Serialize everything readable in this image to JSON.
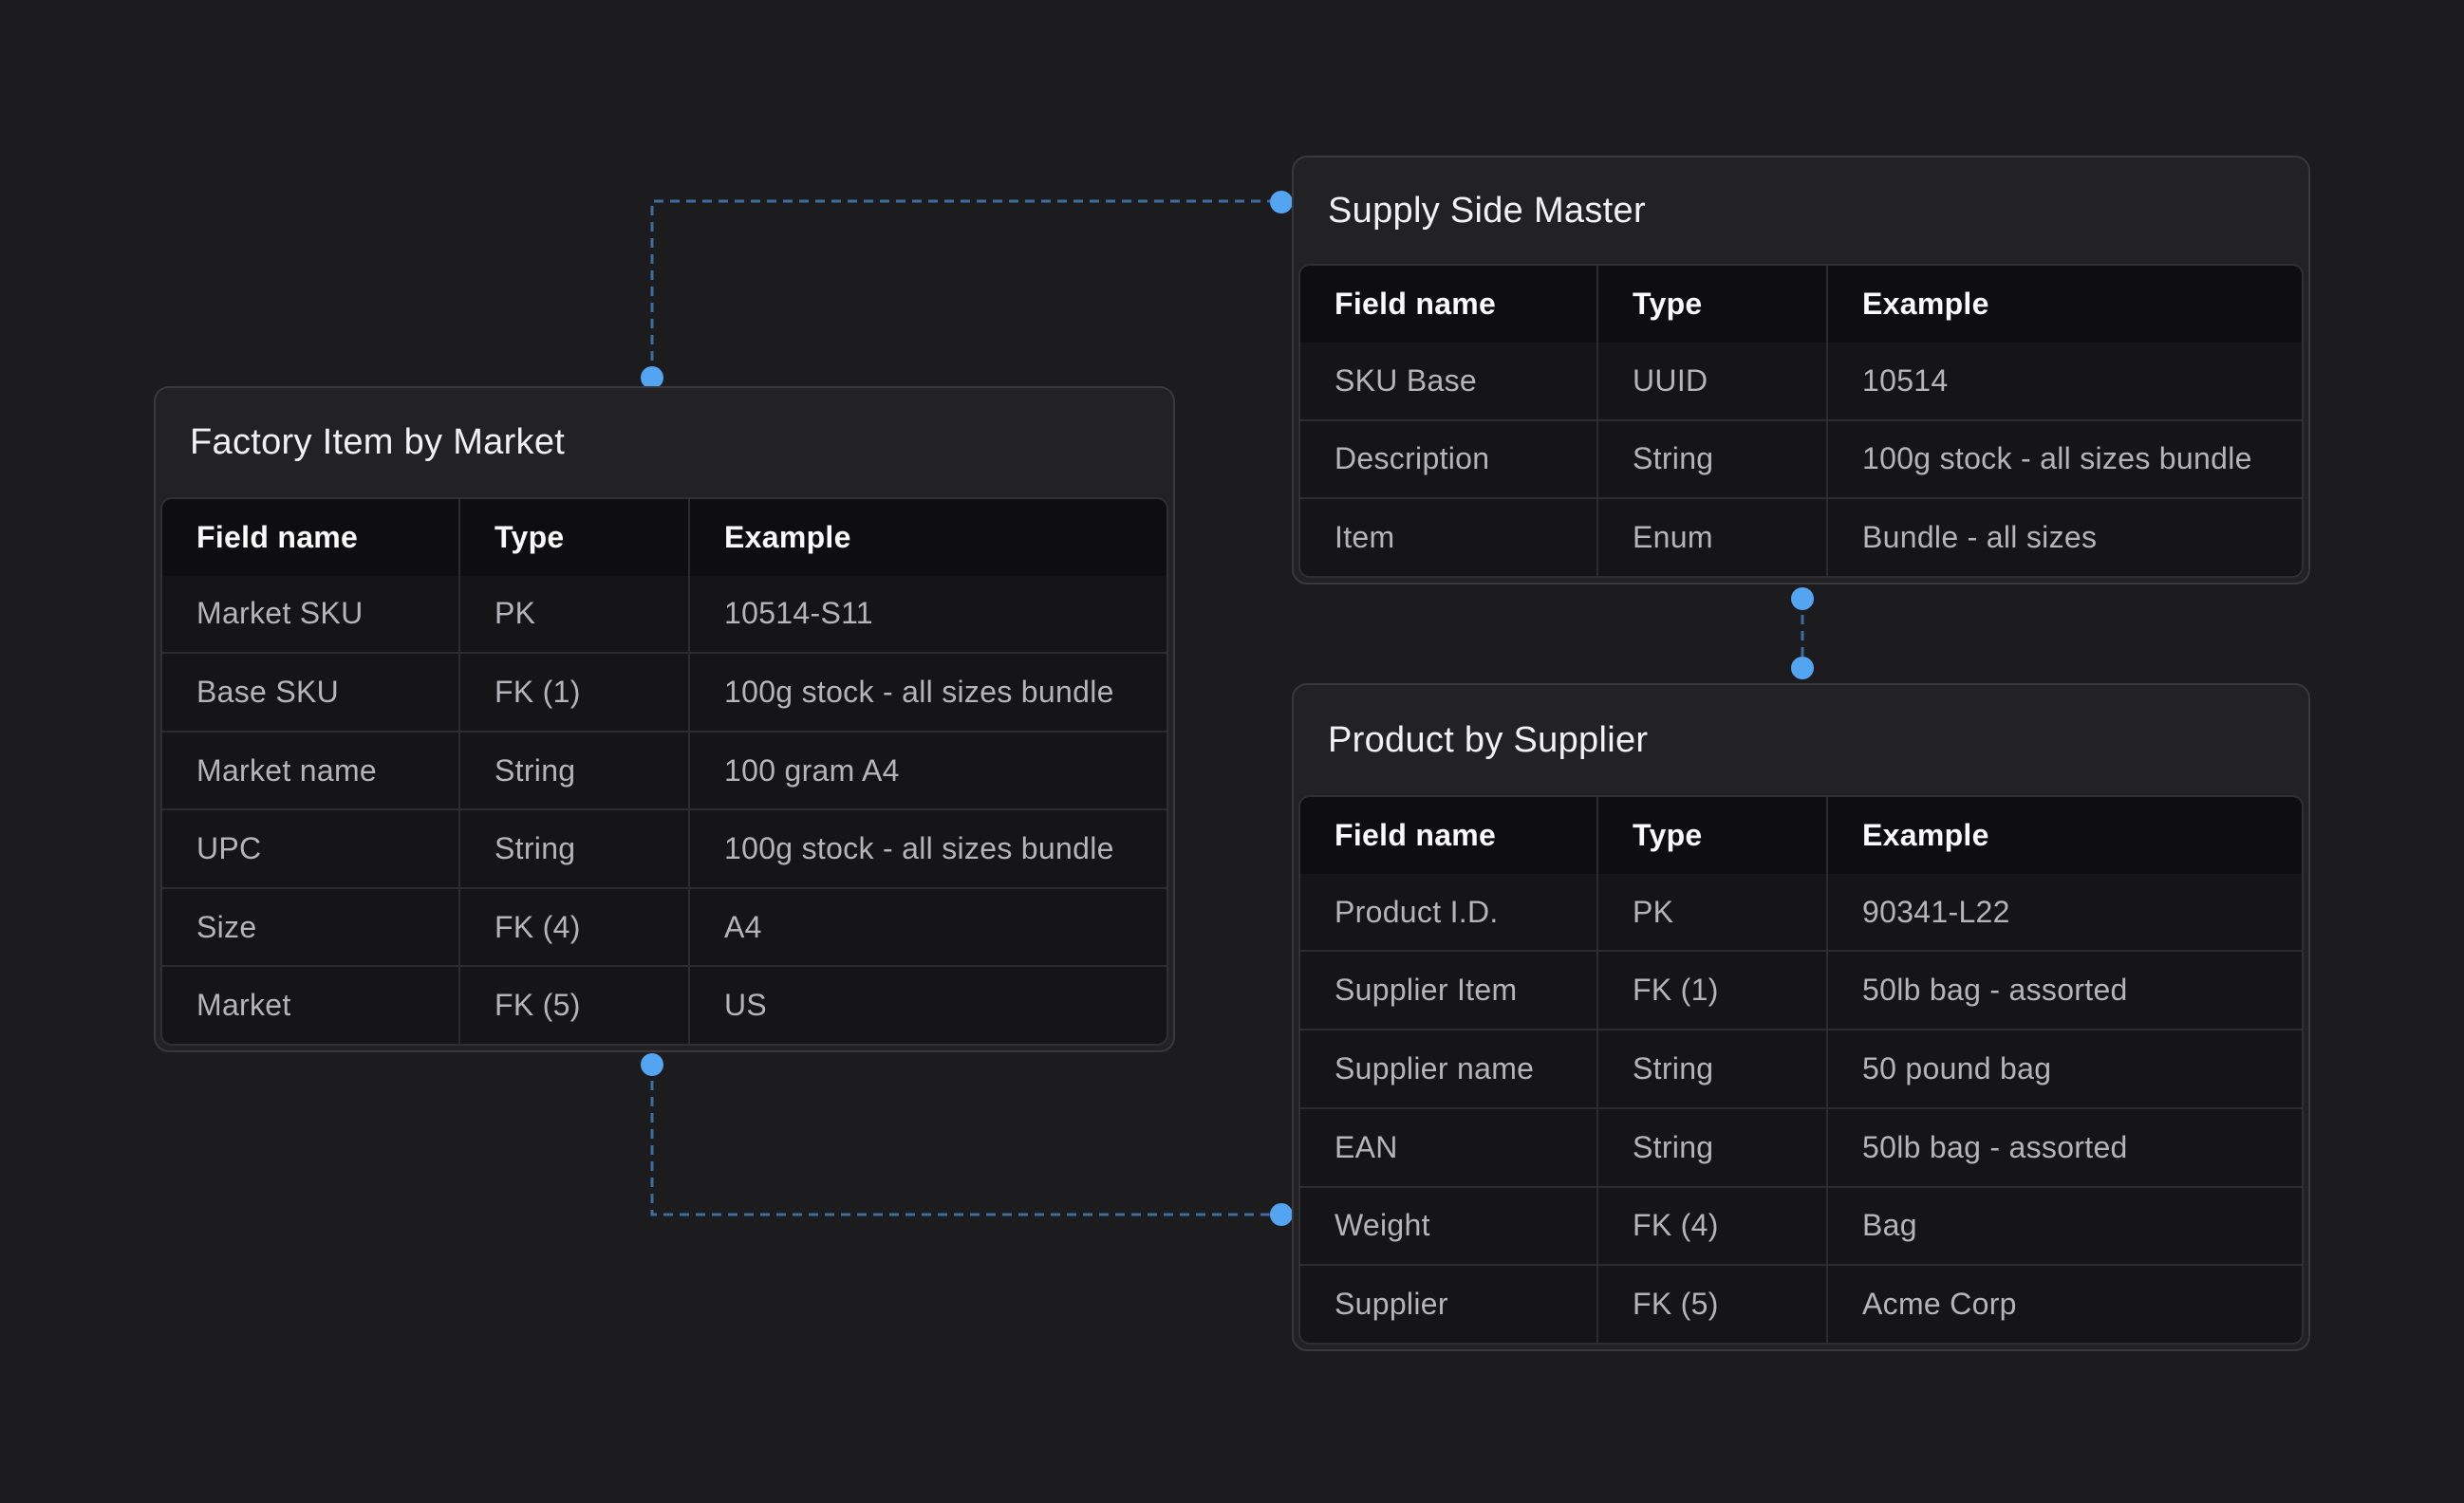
{
  "diagram": {
    "tables": [
      {
        "title": "Factory Item by Market",
        "columns": [
          "Field name",
          "Type",
          "Example"
        ],
        "rows": [
          [
            "Market SKU",
            "PK",
            "10514-S11"
          ],
          [
            "Base SKU",
            "FK (1)",
            "100g stock - all sizes bundle"
          ],
          [
            "Market name",
            "String",
            "100 gram A4"
          ],
          [
            "UPC",
            "String",
            "100g stock - all sizes bundle"
          ],
          [
            "Size",
            "FK (4)",
            "A4"
          ],
          [
            "Market",
            "FK (5)",
            "US"
          ]
        ]
      },
      {
        "title": "Supply Side Master",
        "columns": [
          "Field name",
          "Type",
          "Example"
        ],
        "rows": [
          [
            "SKU Base",
            "UUID",
            "10514"
          ],
          [
            "Description",
            "String",
            "100g stock - all sizes bundle"
          ],
          [
            "Item",
            "Enum",
            "Bundle - all sizes"
          ]
        ]
      },
      {
        "title": "Product by Supplier",
        "columns": [
          "Field name",
          "Type",
          "Example"
        ],
        "rows": [
          [
            "Product I.D.",
            "PK",
            "90341-L22"
          ],
          [
            "Supplier Item",
            "FK (1)",
            "50lb bag - assorted"
          ],
          [
            "Supplier name",
            "String",
            "50 pound bag"
          ],
          [
            "EAN",
            "String",
            "50lb bag - assorted"
          ],
          [
            "Weight",
            "FK (4)",
            "Bag"
          ],
          [
            "Supplier",
            "FK (5)",
            "Acme Corp"
          ]
        ]
      }
    ],
    "colors": {
      "background": "#1c1c1e",
      "card_background": "#222225",
      "card_border": "#39393d",
      "header_row_background": "#0e0e10",
      "row_background": "#151517",
      "divider": "#2c2c2f",
      "table_border": "#303034",
      "title_text": "#f2f2f4",
      "header_text": "#fafafa",
      "cell_text": "#b4b4b9",
      "connector_line": "#3e6d9e",
      "connector_dot": "#54a5f1"
    }
  }
}
